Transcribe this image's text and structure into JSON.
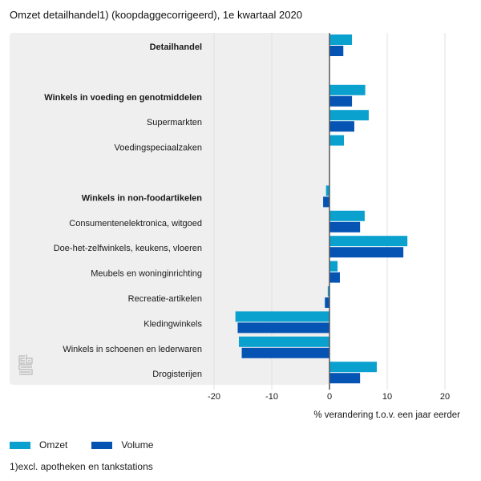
{
  "title": "Omzet detailhandel1) (koopdaggecorrigeerd), 1e kwartaal 2020",
  "footnote": "1)excl. apotheken en tankstations",
  "logo": "cbs-logo-icon",
  "colors": {
    "omzet": "#0ba1cf",
    "volume": "#0554b3",
    "panel": "#efefef",
    "zero_line": "#555555",
    "grid": "#e0e0e0"
  },
  "legend": [
    {
      "name": "Omzet",
      "color": "#0ba1cf"
    },
    {
      "name": "Volume",
      "color": "#0554b3"
    }
  ],
  "chart_data": {
    "type": "bar",
    "orientation": "horizontal",
    "title": "Omzet detailhandel1) (koopdaggecorrigeerd), 1e kwartaal 2020",
    "xlabel": "% verandering t.o.v. een jaar eerder",
    "ylabel": "",
    "xlim": [
      -20,
      20
    ],
    "xticks": [
      -20,
      -10,
      0,
      10,
      20
    ],
    "tick_labels": [
      "-20",
      "-10",
      "0",
      "10",
      "20"
    ],
    "grid": true,
    "legend_position": "bottom-left",
    "categories": [
      {
        "label": "Detailhandel",
        "bold": true
      },
      {
        "label": "",
        "bold": false
      },
      {
        "label": "Winkels in voeding en genotmiddelen",
        "bold": true
      },
      {
        "label": "Supermarkten",
        "bold": false
      },
      {
        "label": "Voedingspeciaalzaken",
        "bold": false
      },
      {
        "label": "",
        "bold": false
      },
      {
        "label": "Winkels in non-foodartikelen",
        "bold": true
      },
      {
        "label": "Consumentenelektronica, witgoed",
        "bold": false
      },
      {
        "label": "Doe-het-zelfwinkels, keukens, vloeren",
        "bold": false
      },
      {
        "label": "Meubels en woninginrichting",
        "bold": false
      },
      {
        "label": "Recreatie-artikelen",
        "bold": false
      },
      {
        "label": "Kledingwinkels",
        "bold": false
      },
      {
        "label": "Winkels in schoenen en lederwaren",
        "bold": false
      },
      {
        "label": "Drogisterijen",
        "bold": false
      }
    ],
    "series": [
      {
        "name": "Omzet",
        "values": [
          3.9,
          null,
          6.2,
          6.8,
          2.5,
          null,
          -0.6,
          6.1,
          13.5,
          1.4,
          -0.3,
          -16.3,
          -15.7,
          8.2
        ]
      },
      {
        "name": "Volume",
        "values": [
          2.4,
          null,
          3.9,
          4.3,
          null,
          null,
          -1.1,
          5.3,
          12.8,
          1.8,
          -0.8,
          -15.9,
          -15.2,
          5.3
        ]
      }
    ]
  }
}
